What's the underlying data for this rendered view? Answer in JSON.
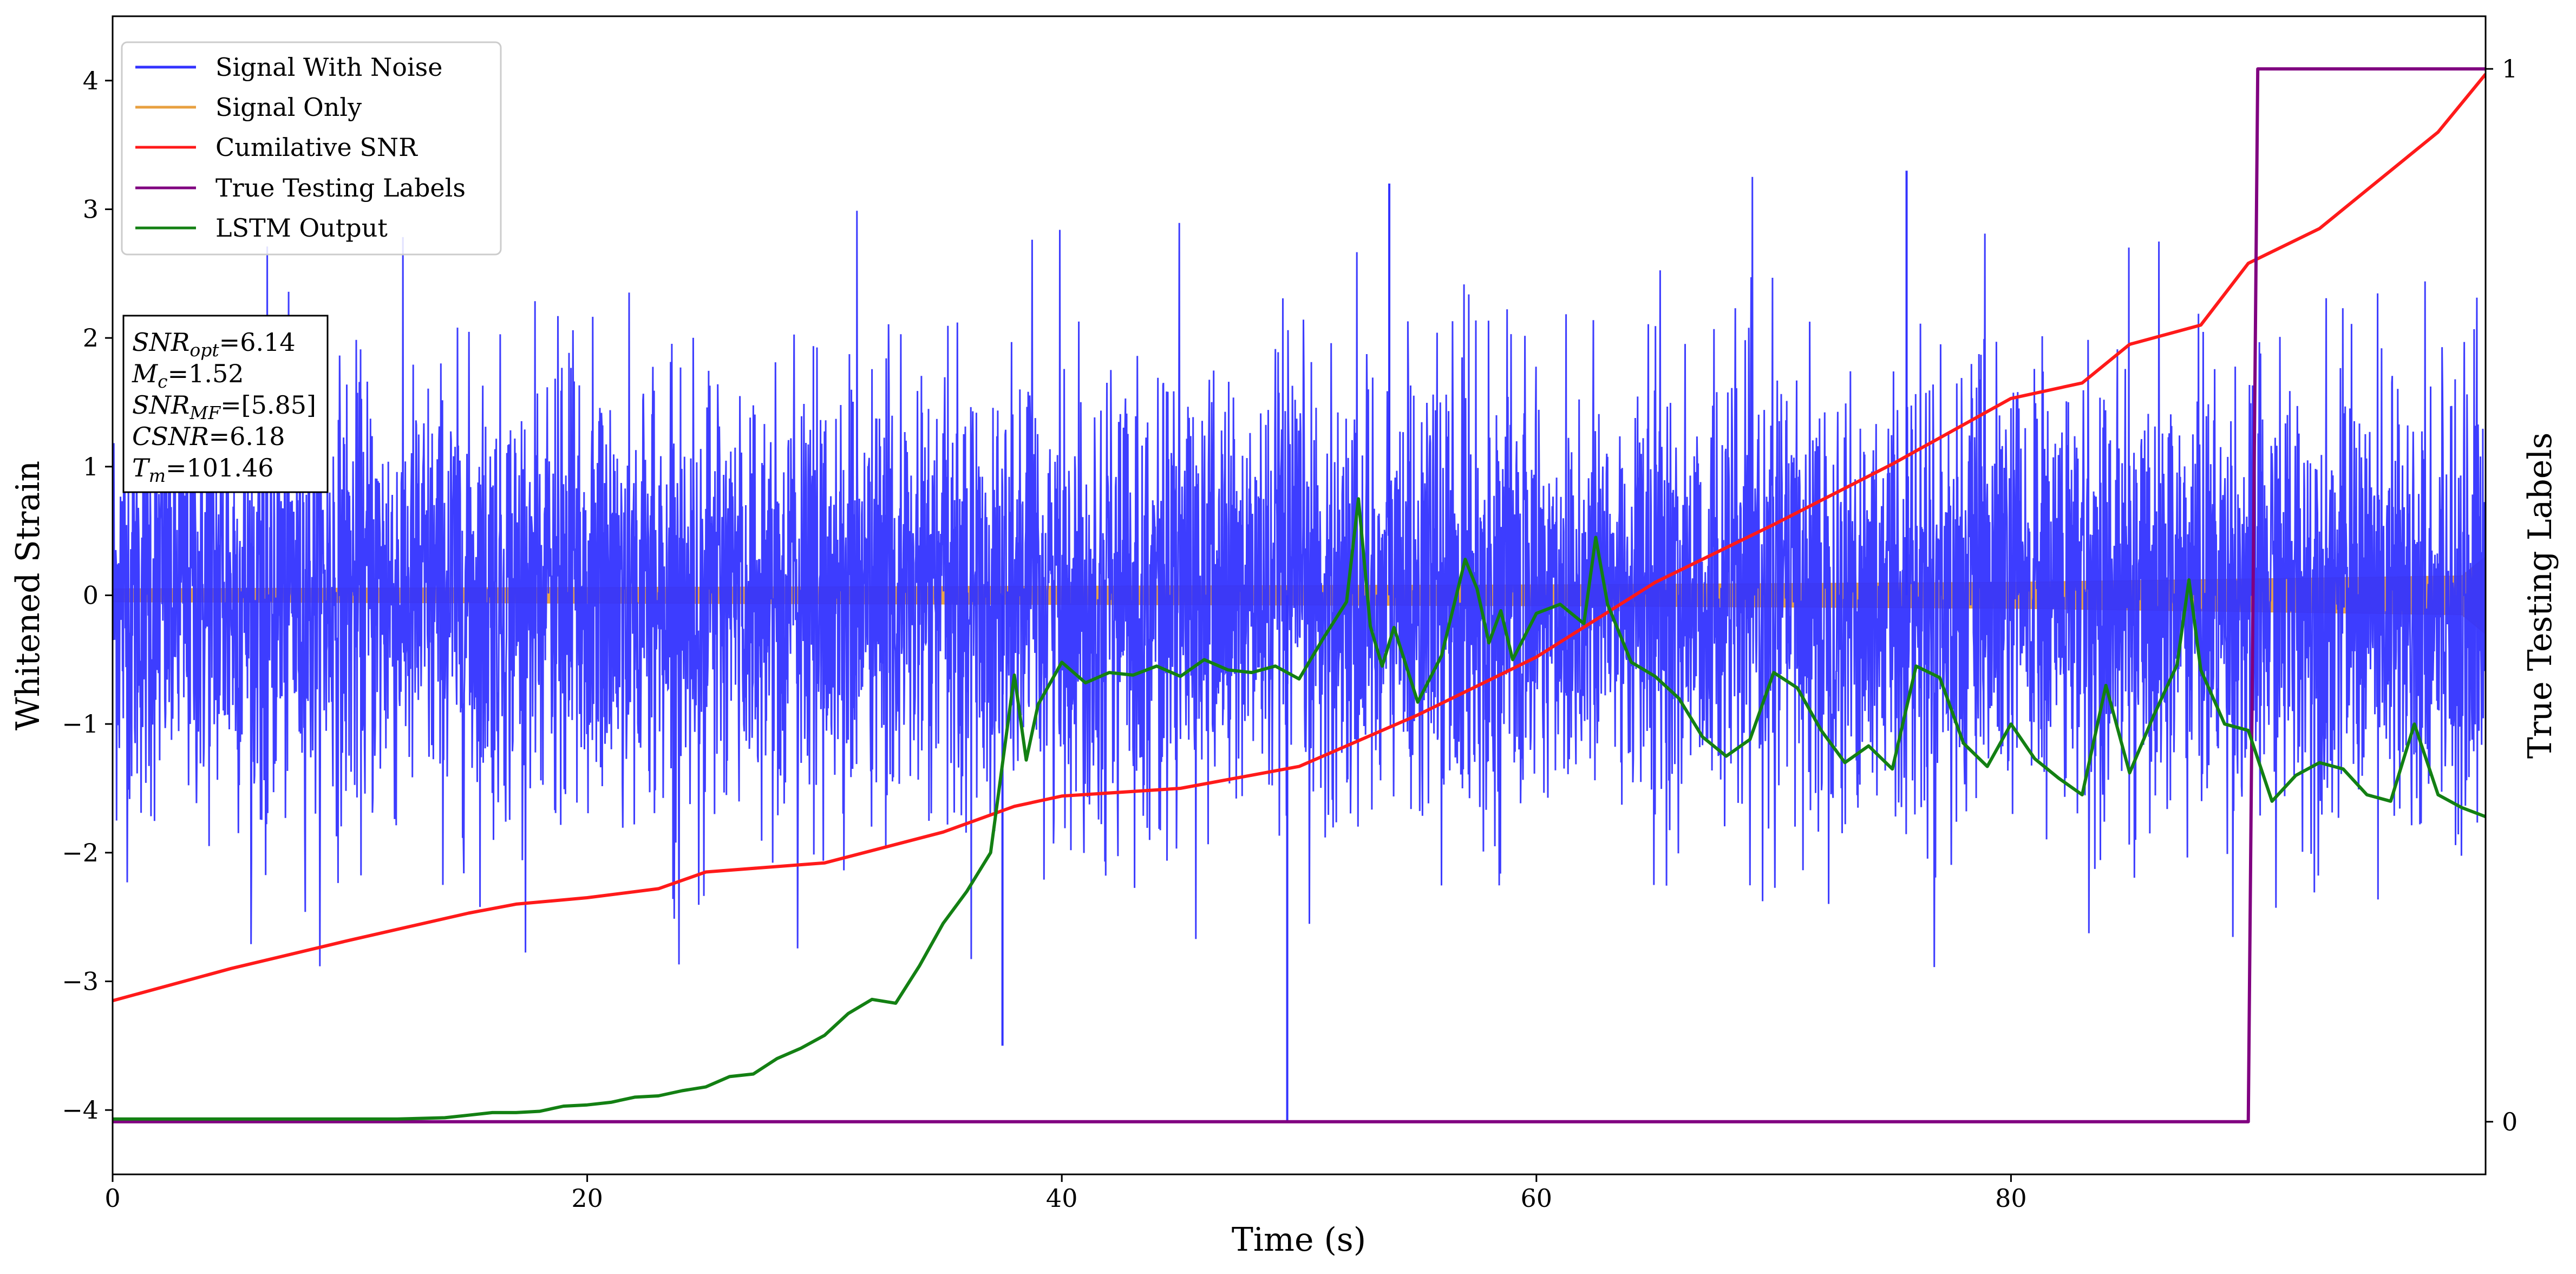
{
  "chart_data": {
    "type": "line",
    "xlabel": "Time (s)",
    "ylabel": "Whitened Strain",
    "y2label": "True Testing Labels",
    "xlim": [
      0,
      100
    ],
    "ylim": [
      -4.5,
      4.5
    ],
    "y2lim": [
      -0.05,
      1.05
    ],
    "x_ticks": [
      0,
      20,
      40,
      60,
      80
    ],
    "y_ticks": [
      -4,
      -3,
      -2,
      -1,
      0,
      1,
      2,
      3,
      4
    ],
    "y_tick_labels": [
      "−4",
      "−3",
      "−2",
      "−1",
      "0",
      "1",
      "2",
      "3",
      "4"
    ],
    "y2_ticks": [
      0,
      1
    ],
    "grid": false,
    "legend_position": "top-left",
    "info_box": {
      "lines": [
        {
          "sym": "SNR",
          "sub": "opt",
          "val": "=6.14"
        },
        {
          "sym": "M",
          "sub": "c",
          "val": "=1.52"
        },
        {
          "sym": "SNR",
          "sub": "MF",
          "val": "=[5.85]"
        },
        {
          "sym": "CSNR",
          "sub": "",
          "val": "=6.18"
        },
        {
          "sym": "T",
          "sub": "m",
          "val": "=101.46"
        }
      ]
    },
    "series": [
      {
        "name": "Signal With Noise",
        "color": "#3333ff",
        "axis": "left",
        "kind": "noise",
        "base_std": 0.85,
        "envelope": [
          [
            0,
            -2.8,
            2.6
          ],
          [
            10,
            -2.9,
            2.8
          ],
          [
            20,
            -2.9,
            2.8
          ],
          [
            30,
            -3.0,
            3.0
          ],
          [
            40,
            -3.2,
            3.0
          ],
          [
            50,
            -3.2,
            3.0
          ],
          [
            60,
            -3.1,
            3.2
          ],
          [
            70,
            -3.1,
            3.3
          ],
          [
            80,
            -3.1,
            3.0
          ],
          [
            90,
            -3.0,
            2.6
          ],
          [
            100,
            -3.0,
            2.4
          ]
        ],
        "spikes": [
          [
            37.5,
            -3.5
          ],
          [
            49.5,
            -4.1
          ],
          [
            53.8,
            3.2
          ],
          [
            75.6,
            3.3
          ]
        ]
      },
      {
        "name": "Signal Only",
        "color": "#e8a040",
        "axis": "left",
        "kind": "band",
        "amp": [
          [
            0,
            0.05
          ],
          [
            20,
            0.06
          ],
          [
            40,
            0.07
          ],
          [
            60,
            0.08
          ],
          [
            80,
            0.1
          ],
          [
            99,
            0.15
          ],
          [
            100,
            0.3
          ]
        ]
      },
      {
        "name": "Cumilative SNR",
        "color": "#ff1a1a",
        "axis": "left",
        "kind": "line",
        "x": [
          0,
          5,
          10,
          15,
          17,
          20,
          23,
          25,
          30,
          35,
          38,
          40,
          45,
          50,
          55,
          60,
          65,
          70,
          75,
          80,
          83,
          85,
          88,
          90,
          93,
          95,
          98,
          100
        ],
        "y": [
          -3.15,
          -2.9,
          -2.68,
          -2.47,
          -2.4,
          -2.35,
          -2.28,
          -2.15,
          -2.08,
          -1.84,
          -1.64,
          -1.56,
          -1.5,
          -1.33,
          -0.93,
          -0.48,
          0.1,
          0.55,
          1.02,
          1.53,
          1.65,
          1.95,
          2.1,
          2.58,
          2.85,
          3.15,
          3.6,
          4.05
        ]
      },
      {
        "name": "True Testing Labels",
        "color": "#800080",
        "axis": "right",
        "kind": "line",
        "x": [
          0,
          90,
          90.4,
          100
        ],
        "y": [
          0,
          0,
          1,
          1
        ]
      },
      {
        "name": "LSTM Output",
        "color": "#138013",
        "axis": "left",
        "kind": "line",
        "x": [
          0,
          12,
          14,
          15,
          16,
          17,
          18,
          19,
          20,
          21,
          22,
          23,
          24,
          25,
          26,
          27,
          28,
          29,
          30,
          31,
          32,
          33,
          34,
          35,
          36,
          37,
          38,
          38.5,
          39,
          40,
          41,
          42,
          43,
          44,
          45,
          46,
          47,
          48,
          49,
          50,
          51,
          52,
          52.5,
          53,
          53.5,
          54,
          55,
          56,
          57,
          57.5,
          58,
          58.5,
          59,
          60,
          61,
          62,
          62.5,
          63,
          64,
          65,
          66,
          67,
          68,
          69,
          70,
          71,
          72,
          73,
          74,
          75,
          76,
          77,
          78,
          79,
          80,
          81,
          82,
          83,
          84,
          85,
          86,
          87,
          87.5,
          88,
          89,
          90,
          91,
          92,
          93,
          94,
          95,
          96,
          97,
          98,
          99,
          100
        ],
        "y": [
          -4.07,
          -4.07,
          -4.06,
          -4.04,
          -4.02,
          -4.02,
          -4.01,
          -3.97,
          -3.96,
          -3.94,
          -3.9,
          -3.89,
          -3.85,
          -3.82,
          -3.74,
          -3.72,
          -3.6,
          -3.52,
          -3.42,
          -3.25,
          -3.14,
          -3.17,
          -2.88,
          -2.55,
          -2.3,
          -2.0,
          -0.62,
          -1.28,
          -0.85,
          -0.52,
          -0.68,
          -0.6,
          -0.62,
          -0.55,
          -0.63,
          -0.5,
          -0.58,
          -0.6,
          -0.55,
          -0.65,
          -0.34,
          -0.05,
          0.75,
          -0.24,
          -0.55,
          -0.25,
          -0.83,
          -0.47,
          0.28,
          0.05,
          -0.37,
          -0.12,
          -0.5,
          -0.14,
          -0.07,
          -0.22,
          0.45,
          -0.07,
          -0.52,
          -0.63,
          -0.8,
          -1.1,
          -1.25,
          -1.12,
          -0.6,
          -0.72,
          -1.05,
          -1.3,
          -1.17,
          -1.35,
          -0.55,
          -0.64,
          -1.15,
          -1.33,
          -1.0,
          -1.27,
          -1.42,
          -1.55,
          -0.7,
          -1.38,
          -0.94,
          -0.54,
          0.12,
          -0.58,
          -1.0,
          -1.05,
          -1.6,
          -1.4,
          -1.3,
          -1.35,
          -1.55,
          -1.6,
          -1.0,
          -1.55,
          -1.65,
          -1.72
        ]
      }
    ]
  }
}
